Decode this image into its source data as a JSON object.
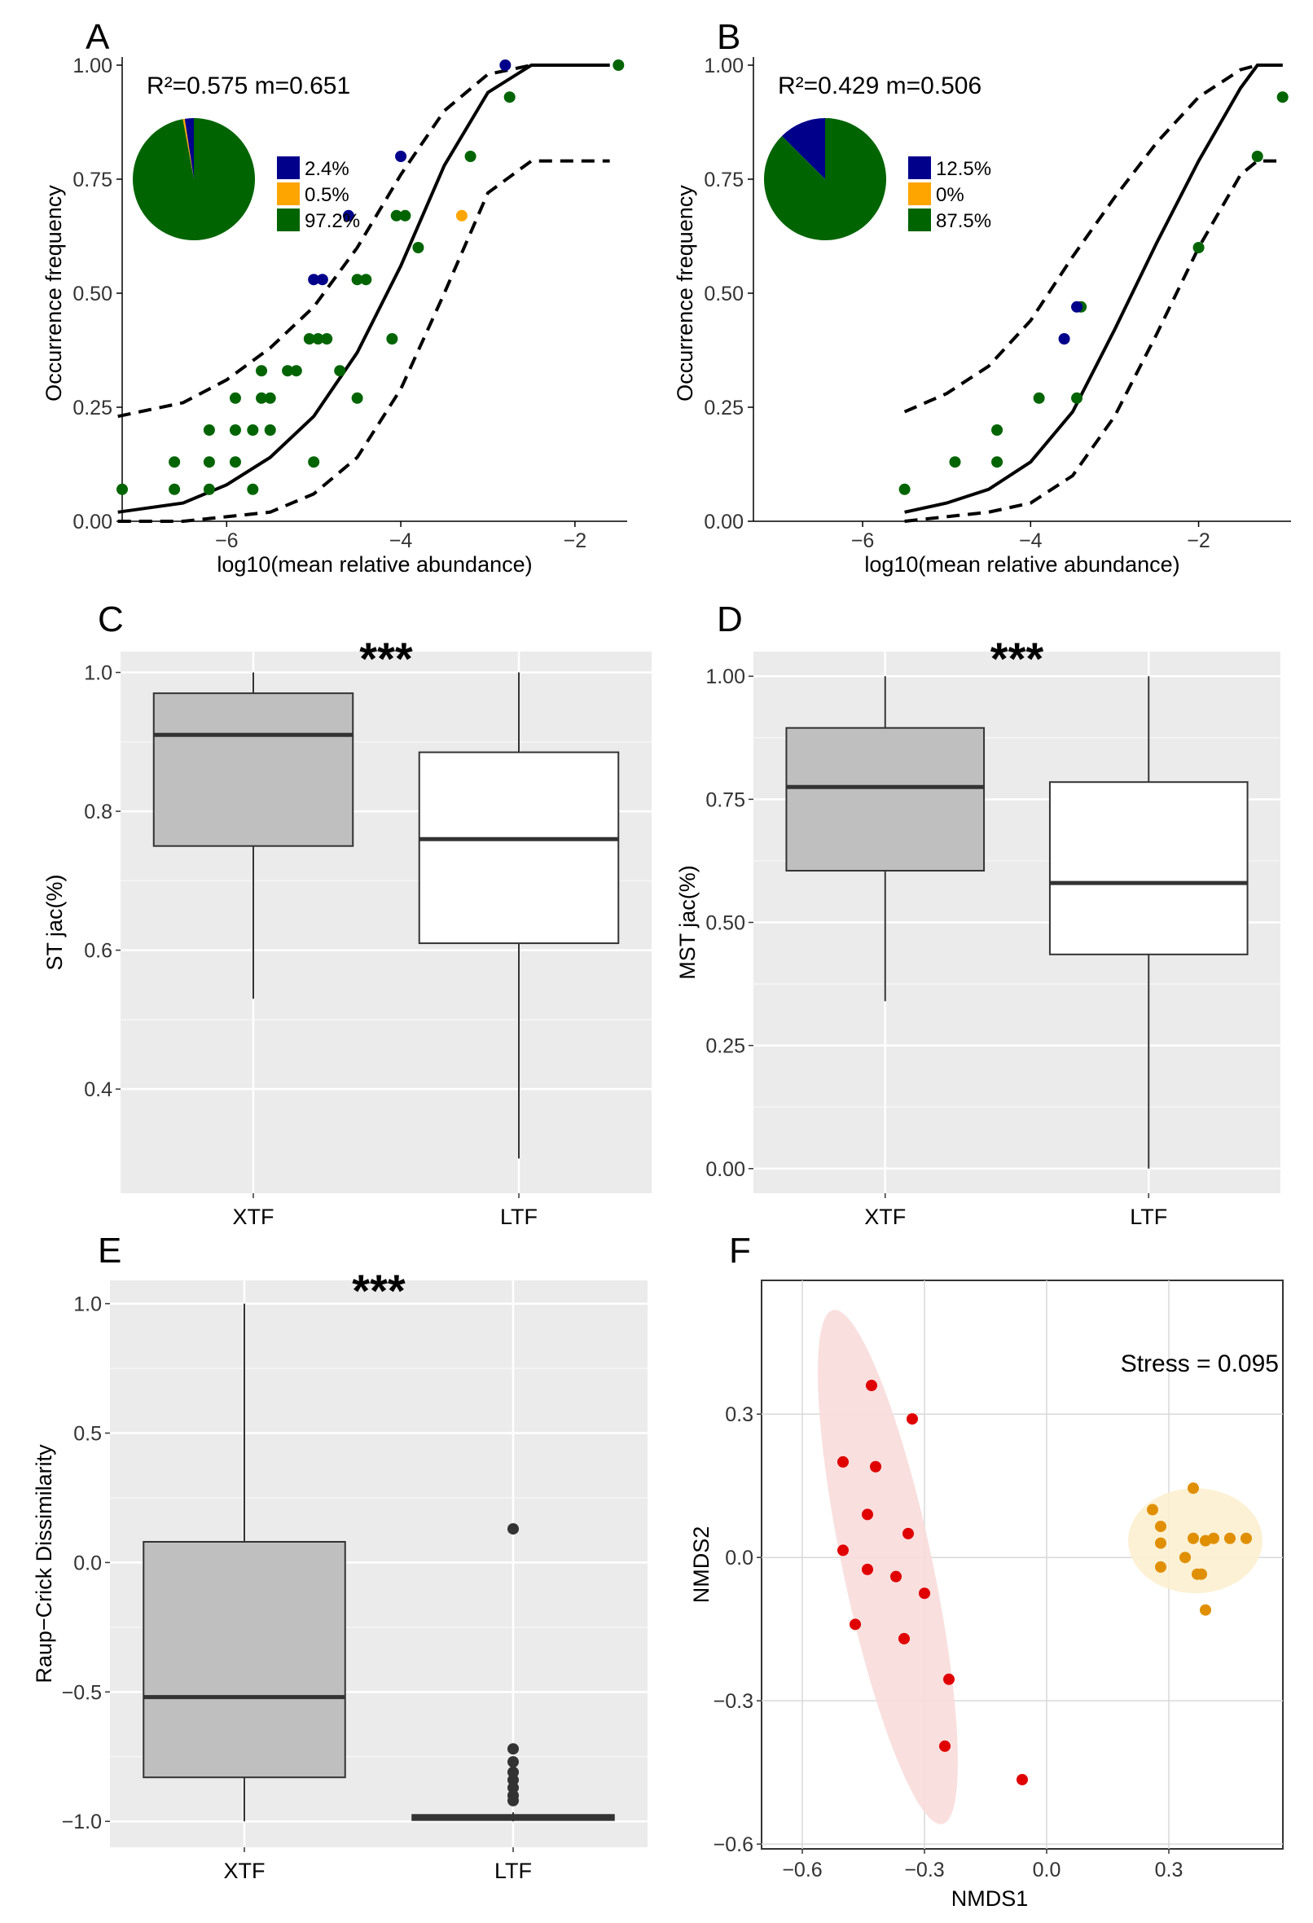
{
  "colors": {
    "blue": "#00008b",
    "orange": "#ffa500",
    "green": "#006400",
    "red": "#e00000",
    "amber": "#e08f00",
    "box_gray": "#bfbfbf",
    "panel_bg": "#ebebeb"
  },
  "chart_data": [
    {
      "id": "A",
      "type": "scatter",
      "label": "A",
      "annotation": "R²=0.575  m=0.651",
      "xlabel": "log10(mean relative abundance)",
      "ylabel": "Occurrence frequency",
      "xlim": [
        -7.2,
        -1.4
      ],
      "ylim": [
        0,
        1
      ],
      "xticks": [
        -6,
        -4,
        -2
      ],
      "xtick_labels": [
        "−6",
        "−4",
        "−2"
      ],
      "yticks": [
        0,
        0.25,
        0.5,
        0.75,
        1
      ],
      "ytick_labels": [
        "0.00",
        "0.25",
        "0.50",
        "0.75",
        "1.00"
      ],
      "fit": {
        "x": [
          -7.25,
          -6.5,
          -6,
          -5.5,
          -5,
          -4.5,
          -4,
          -3.5,
          -3,
          -2.5,
          -1.6
        ],
        "y": [
          0.02,
          0.04,
          0.08,
          0.14,
          0.23,
          0.37,
          0.56,
          0.78,
          0.94,
          1.0,
          1.0
        ]
      },
      "upper": {
        "x": [
          -7.25,
          -6.5,
          -6,
          -5.5,
          -5,
          -4.5,
          -4,
          -3.5,
          -3,
          -2.5,
          -1.6
        ],
        "y": [
          0.23,
          0.26,
          0.31,
          0.38,
          0.47,
          0.6,
          0.76,
          0.9,
          0.98,
          1.0,
          1.0
        ]
      },
      "lower": {
        "x": [
          -7.25,
          -6.5,
          -6,
          -5.5,
          -5,
          -4.5,
          -4,
          -3.5,
          -3,
          -2.5,
          -1.6
        ],
        "y": [
          0.0,
          0.0,
          0.01,
          0.02,
          0.06,
          0.14,
          0.29,
          0.5,
          0.72,
          0.79,
          0.79
        ]
      },
      "points": {
        "green": [
          [
            -7.2,
            0.07
          ],
          [
            -6.6,
            0.07
          ],
          [
            -6.6,
            0.13
          ],
          [
            -6.2,
            0.07
          ],
          [
            -6.2,
            0.13
          ],
          [
            -6.2,
            0.2
          ],
          [
            -5.9,
            0.13
          ],
          [
            -5.9,
            0.2
          ],
          [
            -5.9,
            0.27
          ],
          [
            -5.7,
            0.07
          ],
          [
            -5.7,
            0.2
          ],
          [
            -5.6,
            0.27
          ],
          [
            -5.6,
            0.33
          ],
          [
            -5.5,
            0.2
          ],
          [
            -5.5,
            0.27
          ],
          [
            -5.3,
            0.33
          ],
          [
            -5.2,
            0.33
          ],
          [
            -5.05,
            0.4
          ],
          [
            -5.0,
            0.13
          ],
          [
            -4.95,
            0.4
          ],
          [
            -4.85,
            0.4
          ],
          [
            -4.7,
            0.33
          ],
          [
            -4.5,
            0.27
          ],
          [
            -4.5,
            0.53
          ],
          [
            -4.4,
            0.53
          ],
          [
            -4.1,
            0.4
          ],
          [
            -4.05,
            0.67
          ],
          [
            -3.95,
            0.67
          ],
          [
            -3.8,
            0.6
          ],
          [
            -3.2,
            0.8
          ],
          [
            -2.75,
            0.93
          ],
          [
            -1.5,
            1.0
          ]
        ],
        "blue": [
          [
            -5.0,
            0.53
          ],
          [
            -4.9,
            0.53
          ],
          [
            -4.6,
            0.67
          ],
          [
            -4.0,
            0.8
          ],
          [
            -2.8,
            1.0
          ]
        ],
        "orange": [
          [
            -3.3,
            0.67
          ]
        ]
      },
      "pie": {
        "labels": [
          "2.4%",
          "0.5%",
          "97.2%"
        ],
        "values": [
          2.4,
          0.5,
          97.2
        ],
        "colors": [
          "#00008b",
          "#ffa500",
          "#006400"
        ]
      }
    },
    {
      "id": "B",
      "type": "scatter",
      "label": "B",
      "annotation": "R²=0.429  m=0.506",
      "xlabel": "log10(mean relative abundance)",
      "ylabel": "Occurrence frequency",
      "xlim": [
        -7.3,
        -0.9
      ],
      "ylim": [
        0,
        1
      ],
      "xticks": [
        -6,
        -4,
        -2
      ],
      "xtick_labels": [
        "−6",
        "−4",
        "−2"
      ],
      "yticks": [
        0,
        0.25,
        0.5,
        0.75,
        1
      ],
      "ytick_labels": [
        "0.00",
        "0.25",
        "0.50",
        "0.75",
        "1.00"
      ],
      "fit": {
        "x": [
          -5.5,
          -5,
          -4.5,
          -4,
          -3.5,
          -3,
          -2.5,
          -2,
          -1.5,
          -1.3,
          -1.0
        ],
        "y": [
          0.02,
          0.04,
          0.07,
          0.13,
          0.24,
          0.42,
          0.61,
          0.79,
          0.95,
          1.0,
          1.0
        ]
      },
      "upper": {
        "x": [
          -5.5,
          -5,
          -4.5,
          -4,
          -3.5,
          -3,
          -2.5,
          -2,
          -1.5,
          -1.3,
          -1.0
        ],
        "y": [
          0.24,
          0.28,
          0.34,
          0.44,
          0.58,
          0.71,
          0.83,
          0.93,
          0.99,
          1.0,
          1.0
        ]
      },
      "lower": {
        "x": [
          -5.5,
          -5,
          -4.5,
          -4,
          -3.5,
          -3,
          -2.5,
          -2,
          -1.5,
          -1.3,
          -1.0
        ],
        "y": [
          0.0,
          0.01,
          0.02,
          0.04,
          0.1,
          0.23,
          0.41,
          0.6,
          0.76,
          0.79,
          0.79
        ]
      },
      "points": {
        "green": [
          [
            -5.5,
            0.07
          ],
          [
            -4.9,
            0.13
          ],
          [
            -4.4,
            0.13
          ],
          [
            -4.4,
            0.2
          ],
          [
            -3.9,
            0.27
          ],
          [
            -3.4,
            0.47
          ],
          [
            -3.45,
            0.27
          ],
          [
            -2.0,
            0.6
          ],
          [
            -1.3,
            0.8
          ],
          [
            -1.0,
            0.93
          ]
        ],
        "blue": [
          [
            -3.6,
            0.4
          ],
          [
            -3.45,
            0.47
          ]
        ],
        "orange": []
      },
      "pie": {
        "labels": [
          "12.5%",
          "0%",
          "87.5%"
        ],
        "values": [
          12.5,
          0,
          87.5
        ],
        "colors": [
          "#00008b",
          "#ffa500",
          "#006400"
        ]
      }
    },
    {
      "id": "C",
      "type": "box",
      "label": "C",
      "significance": "***",
      "ylabel": "ST jac(%)",
      "categories": [
        "XTF",
        "LTF"
      ],
      "ylim": [
        0.25,
        1.03
      ],
      "yticks": [
        0.4,
        0.6,
        0.8,
        1.0
      ],
      "ytick_labels": [
        "0.4",
        "0.6",
        "0.8",
        "1.0"
      ],
      "boxes": [
        {
          "name": "XTF",
          "min": 0.53,
          "q1": 0.75,
          "median": 0.91,
          "q3": 0.97,
          "max": 1.0,
          "fill": "#bfbfbf",
          "outliers": []
        },
        {
          "name": "LTF",
          "min": 0.3,
          "q1": 0.61,
          "median": 0.76,
          "q3": 0.885,
          "max": 1.0,
          "fill": "#ffffff",
          "outliers": []
        }
      ]
    },
    {
      "id": "D",
      "type": "box",
      "label": "D",
      "significance": "***",
      "ylabel": "MST jac(%)",
      "categories": [
        "XTF",
        "LTF"
      ],
      "ylim": [
        -0.05,
        1.05
      ],
      "yticks": [
        0,
        0.25,
        0.5,
        0.75,
        1.0
      ],
      "ytick_labels": [
        "0.00",
        "0.25",
        "0.50",
        "0.75",
        "1.00"
      ],
      "boxes": [
        {
          "name": "XTF",
          "min": 0.34,
          "q1": 0.605,
          "median": 0.775,
          "q3": 0.895,
          "max": 1.0,
          "fill": "#bfbfbf",
          "outliers": []
        },
        {
          "name": "LTF",
          "min": 0.0,
          "q1": 0.435,
          "median": 0.58,
          "q3": 0.785,
          "max": 1.0,
          "fill": "#ffffff",
          "outliers": []
        }
      ]
    },
    {
      "id": "E",
      "type": "box",
      "label": "E",
      "significance": "***",
      "ylabel": "Raup−Crick Dissimilarity",
      "categories": [
        "XTF",
        "LTF"
      ],
      "ylim": [
        -1.1,
        1.09
      ],
      "yticks": [
        -1.0,
        -0.5,
        0.0,
        0.5,
        1.0
      ],
      "ytick_labels": [
        "−1.0",
        "−0.5",
        "0.0",
        "0.5",
        "1.0"
      ],
      "boxes": [
        {
          "name": "XTF",
          "min": -1.0,
          "q1": -0.83,
          "median": -0.52,
          "q3": 0.08,
          "max": 1.0,
          "fill": "#bfbfbf",
          "outliers": []
        },
        {
          "name": "LTF",
          "min": -1.0,
          "q1": -0.995,
          "median": -0.985,
          "q3": -0.975,
          "max": -0.965,
          "fill": "#bfbfbf",
          "outliers": [
            0.13,
            -0.72,
            -0.77,
            -0.81,
            -0.84,
            -0.87,
            -0.9,
            -0.92
          ]
        }
      ]
    },
    {
      "id": "F",
      "type": "scatter",
      "label": "F",
      "annotation": "Stress = 0.095",
      "xlabel": "NMDS1",
      "ylabel": "NMDS2",
      "xlim": [
        -0.7,
        0.58
      ],
      "ylim": [
        -0.61,
        0.58
      ],
      "xticks": [
        -0.6,
        -0.3,
        0.0,
        0.3
      ],
      "xtick_labels": [
        "−0.6",
        "−0.3",
        "0.0",
        "0.3"
      ],
      "yticks": [
        -0.6,
        -0.3,
        0.0,
        0.3
      ],
      "ytick_labels": [
        "−0.6",
        "−0.3",
        "0.0",
        "0.3"
      ],
      "groups": [
        {
          "name": "red",
          "color": "#e00000",
          "ellipse": {
            "cx": -0.39,
            "cy": -0.02,
            "rx": 0.11,
            "ry": 0.55,
            "angle": -12,
            "fill": "#fadcdc"
          },
          "points": [
            [
              -0.43,
              0.36
            ],
            [
              -0.33,
              0.29
            ],
            [
              -0.5,
              0.2
            ],
            [
              -0.42,
              0.19
            ],
            [
              -0.44,
              0.09
            ],
            [
              -0.34,
              0.05
            ],
            [
              -0.5,
              0.015
            ],
            [
              -0.44,
              -0.025
            ],
            [
              -0.37,
              -0.04
            ],
            [
              -0.3,
              -0.075
            ],
            [
              -0.47,
              -0.14
            ],
            [
              -0.35,
              -0.17
            ],
            [
              -0.24,
              -0.255
            ],
            [
              -0.25,
              -0.395
            ],
            [
              -0.06,
              -0.465
            ]
          ]
        },
        {
          "name": "orange",
          "color": "#e08f00",
          "ellipse": {
            "cx": 0.365,
            "cy": 0.035,
            "rx": 0.165,
            "ry": 0.11,
            "angle": 0,
            "fill": "#fdf0d0"
          },
          "points": [
            [
              0.36,
              0.145
            ],
            [
              0.26,
              0.1
            ],
            [
              0.28,
              0.065
            ],
            [
              0.36,
              0.04
            ],
            [
              0.39,
              0.035
            ],
            [
              0.41,
              0.04
            ],
            [
              0.45,
              0.04
            ],
            [
              0.49,
              0.04
            ],
            [
              0.28,
              0.03
            ],
            [
              0.34,
              0.0
            ],
            [
              0.28,
              -0.02
            ],
            [
              0.37,
              -0.035
            ],
            [
              0.38,
              -0.035
            ],
            [
              0.39,
              -0.11
            ]
          ]
        }
      ]
    }
  ]
}
